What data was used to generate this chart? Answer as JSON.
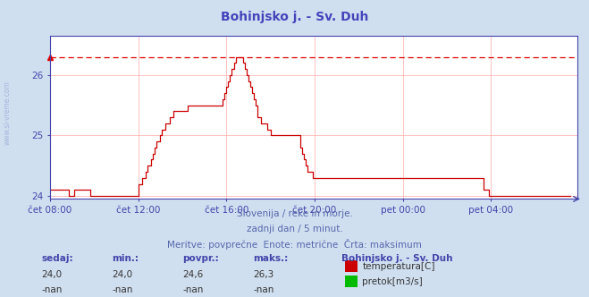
{
  "title": "Bohinjsko j. - Sv. Duh",
  "title_color": "#4444bb",
  "bg_color": "#d0dff0",
  "plot_bg_color": "#ffffff",
  "grid_color": "#ffaaaa",
  "axis_color": "#4444aa",
  "tick_color": "#4444aa",
  "line_color": "#cc0000",
  "dashed_line_color": "#dd0000",
  "dashed_line_value": 26.3,
  "ylim": [
    23.95,
    26.65
  ],
  "yticks": [
    24.0,
    25.0,
    26.0
  ],
  "text_color": "#5566aa",
  "subtitle_lines": [
    "Slovenija / reke in morje.",
    "zadnji dan / 5 minut.",
    "Meritve: povprečne  Enote: metrične  Črta: maksimum"
  ],
  "footer_labels_bold": [
    "sedaj:",
    "min.:",
    "povpr.:",
    "maks.:"
  ],
  "footer_values_row1": [
    "24,0",
    "24,0",
    "24,6",
    "26,3"
  ],
  "footer_values_row2": [
    "-nan",
    "-nan",
    "-nan",
    "-nan"
  ],
  "footer_station": "Bohinjsko j. - Sv. Duh",
  "legend_items": [
    {
      "label": "temperatura[C]",
      "color": "#cc0000"
    },
    {
      "label": "pretok[m3/s]",
      "color": "#00bb00"
    }
  ],
  "x_tick_labels": [
    "čet 08:00",
    "čet 12:00",
    "čet 16:00",
    "čet 20:00",
    "pet 00:00",
    "pet 04:00"
  ],
  "x_tick_positions": [
    0,
    48,
    96,
    144,
    192,
    240
  ],
  "total_points": 288,
  "temp_data": [
    24.1,
    24.1,
    24.1,
    24.1,
    24.1,
    24.1,
    24.1,
    24.1,
    24.1,
    24.1,
    24.0,
    24.0,
    24.0,
    24.1,
    24.1,
    24.1,
    24.1,
    24.1,
    24.1,
    24.1,
    24.1,
    24.1,
    24.0,
    24.0,
    24.0,
    24.0,
    24.0,
    24.0,
    24.0,
    24.0,
    24.0,
    24.0,
    24.0,
    24.0,
    24.0,
    24.0,
    24.0,
    24.0,
    24.0,
    24.0,
    24.0,
    24.0,
    24.0,
    24.0,
    24.0,
    24.0,
    24.0,
    24.0,
    24.2,
    24.2,
    24.3,
    24.3,
    24.4,
    24.5,
    24.5,
    24.6,
    24.7,
    24.8,
    24.9,
    24.9,
    25.0,
    25.1,
    25.1,
    25.2,
    25.2,
    25.3,
    25.3,
    25.4,
    25.4,
    25.4,
    25.4,
    25.4,
    25.4,
    25.4,
    25.4,
    25.5,
    25.5,
    25.5,
    25.5,
    25.5,
    25.5,
    25.5,
    25.5,
    25.5,
    25.5,
    25.5,
    25.5,
    25.5,
    25.5,
    25.5,
    25.5,
    25.5,
    25.5,
    25.5,
    25.6,
    25.7,
    25.8,
    25.9,
    26.0,
    26.1,
    26.2,
    26.3,
    26.3,
    26.3,
    26.3,
    26.2,
    26.1,
    26.0,
    25.9,
    25.8,
    25.7,
    25.6,
    25.5,
    25.3,
    25.3,
    25.2,
    25.2,
    25.2,
    25.1,
    25.1,
    25.0,
    25.0,
    25.0,
    25.0,
    25.0,
    25.0,
    25.0,
    25.0,
    25.0,
    25.0,
    25.0,
    25.0,
    25.0,
    25.0,
    25.0,
    25.0,
    24.8,
    24.7,
    24.6,
    24.5,
    24.4,
    24.4,
    24.4,
    24.3,
    24.3,
    24.3,
    24.3,
    24.3,
    24.3,
    24.3,
    24.3,
    24.3,
    24.3,
    24.3,
    24.3,
    24.3,
    24.3,
    24.3,
    24.3,
    24.3,
    24.3,
    24.3,
    24.3,
    24.3,
    24.3,
    24.3,
    24.3,
    24.3,
    24.3,
    24.3,
    24.3,
    24.3,
    24.3,
    24.3,
    24.3,
    24.3,
    24.3,
    24.3,
    24.3,
    24.3,
    24.3,
    24.3,
    24.3,
    24.3,
    24.3,
    24.3,
    24.3,
    24.3,
    24.3,
    24.3,
    24.3,
    24.3,
    24.3,
    24.3,
    24.3,
    24.3,
    24.3,
    24.3,
    24.3,
    24.3,
    24.3,
    24.3,
    24.3,
    24.3,
    24.3,
    24.3,
    24.3,
    24.3,
    24.3,
    24.3,
    24.3,
    24.3,
    24.3,
    24.3,
    24.3,
    24.3,
    24.3,
    24.3,
    24.3,
    24.3,
    24.3,
    24.3,
    24.3,
    24.3,
    24.3,
    24.3,
    24.3,
    24.3,
    24.3,
    24.3,
    24.3,
    24.3,
    24.3,
    24.3,
    24.3,
    24.3,
    24.1,
    24.1,
    24.1,
    24.0,
    24.0,
    24.0,
    24.0,
    24.0,
    24.0,
    24.0,
    24.0,
    24.0,
    24.0,
    24.0,
    24.0,
    24.0,
    24.0,
    24.0,
    24.0,
    24.0,
    24.0,
    24.0,
    24.0,
    24.0,
    24.0,
    24.0,
    24.0,
    24.0,
    24.0,
    24.0,
    24.0,
    24.0,
    24.0,
    24.0,
    24.0,
    24.0,
    24.0,
    24.0,
    24.0,
    24.0,
    24.0,
    24.0,
    24.0,
    24.0,
    24.0,
    24.0,
    24.0,
    24.0
  ]
}
